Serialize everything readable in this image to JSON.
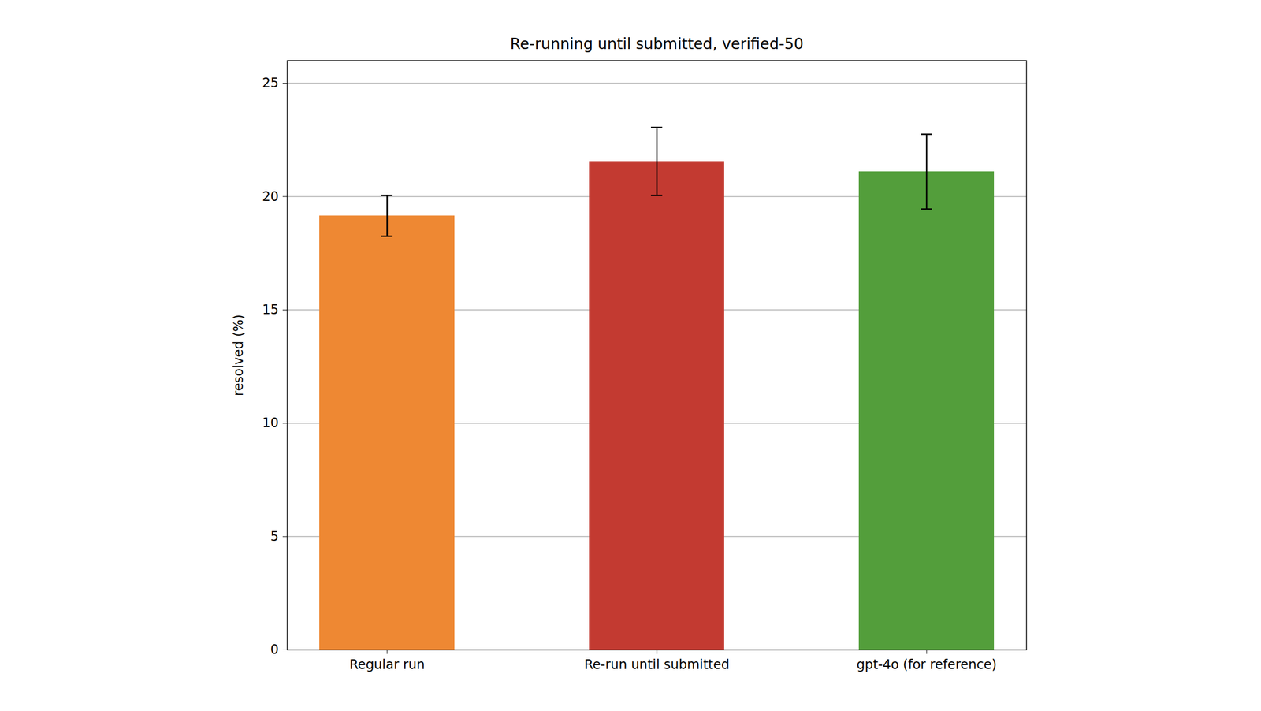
{
  "chart_data": {
    "type": "bar",
    "title": "Re-running until submitted, verified-50",
    "y_label": "resolved (%)",
    "categories": [
      "Regular run",
      "Re-run until submitted",
      "gpt-4o (for reference)"
    ],
    "values": [
      19.15,
      21.55,
      21.1
    ],
    "errors": [
      0.9,
      1.5,
      1.65
    ],
    "colors": [
      "#ee8833",
      "#c33a31",
      "#539e3b"
    ],
    "ylim": [
      0,
      26
    ],
    "yticks": [
      0,
      5,
      10,
      15,
      20,
      25
    ],
    "grid": true
  }
}
